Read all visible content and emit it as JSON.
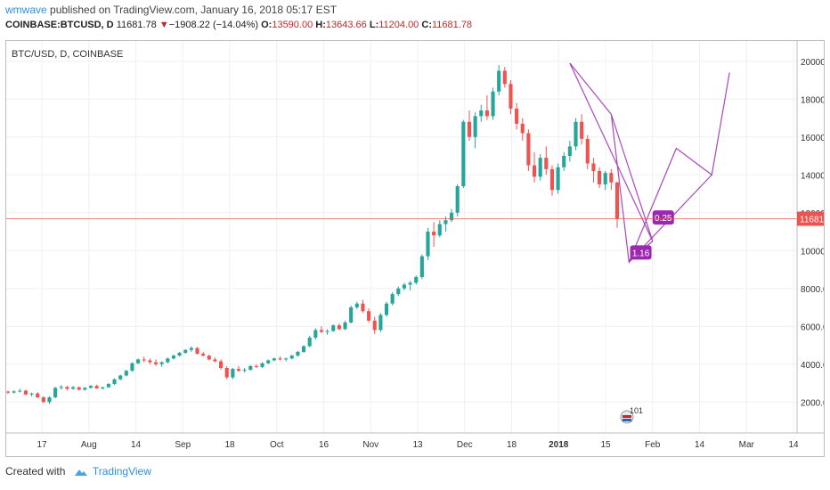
{
  "header": {
    "author": "wmwave",
    "published_text": "published on TradingView.com, January 16, 2018 05:17 EST",
    "symbol_info": "COINBASE:BTCUSD, D",
    "last_price": "11681.78",
    "change": "−1908.22 (−14.04%)",
    "o_label": "O:",
    "o_value": "13590.00",
    "h_label": "H:",
    "h_value": "13643.66",
    "l_label": "L:",
    "l_value": "11204.00",
    "c_label": "C:",
    "c_value": "11681.78"
  },
  "legend_label": "BTC/USD, D, COINBASE",
  "footer": {
    "created_with": "Created with",
    "brand": "TradingView"
  },
  "colors": {
    "up": "#26a69a",
    "down": "#ef5350",
    "pattern": "#9c27b0",
    "price_line": "#ef5350",
    "grid": "#eef0f3"
  },
  "chart_data": {
    "type": "candlestick",
    "title": "BTC/USD, D, COINBASE",
    "last_price": 11681.78,
    "y_ticks": [
      "2000.00",
      "4000.00",
      "6000.00",
      "8000.00",
      "10000.00",
      "12000.00",
      "14000.00",
      "16000.00",
      "18000.00",
      "20000.00"
    ],
    "ylim": [
      600,
      20600
    ],
    "x_ticks": [
      "17",
      "Aug",
      "14",
      "Sep",
      "18",
      "Oct",
      "16",
      "Nov",
      "13",
      "Dec",
      "18",
      "2018",
      "15",
      "Feb",
      "14",
      "Mar",
      "14"
    ],
    "bold_x_tick": "2018",
    "grid": true,
    "candles": [
      [
        2550,
        2600,
        2420,
        2500
      ],
      [
        2500,
        2620,
        2450,
        2560
      ],
      [
        2560,
        2700,
        2500,
        2600
      ],
      [
        2600,
        2650,
        2350,
        2400
      ],
      [
        2400,
        2500,
        2300,
        2450
      ],
      [
        2450,
        2520,
        2200,
        2250
      ],
      [
        2250,
        2300,
        1950,
        2000
      ],
      [
        2000,
        2300,
        1900,
        2250
      ],
      [
        2250,
        2800,
        2200,
        2750
      ],
      [
        2750,
        2900,
        2650,
        2800
      ],
      [
        2800,
        2850,
        2600,
        2700
      ],
      [
        2700,
        2850,
        2650,
        2780
      ],
      [
        2780,
        2820,
        2600,
        2650
      ],
      [
        2650,
        2800,
        2600,
        2750
      ],
      [
        2750,
        2900,
        2700,
        2850
      ],
      [
        2850,
        2920,
        2700,
        2720
      ],
      [
        2720,
        2800,
        2650,
        2780
      ],
      [
        2780,
        3000,
        2750,
        2950
      ],
      [
        2950,
        3250,
        2900,
        3200
      ],
      [
        3200,
        3450,
        3150,
        3400
      ],
      [
        3400,
        3700,
        3350,
        3650
      ],
      [
        3650,
        4100,
        3600,
        4050
      ],
      [
        4050,
        4300,
        4000,
        4250
      ],
      [
        4250,
        4400,
        4100,
        4200
      ],
      [
        4200,
        4300,
        4000,
        4100
      ],
      [
        4100,
        4250,
        3900,
        4000
      ],
      [
        4000,
        4150,
        3850,
        4100
      ],
      [
        4100,
        4350,
        4050,
        4300
      ],
      [
        4300,
        4500,
        4250,
        4450
      ],
      [
        4450,
        4650,
        4400,
        4600
      ],
      [
        4600,
        4800,
        4550,
        4750
      ],
      [
        4750,
        4950,
        4650,
        4850
      ],
      [
        4850,
        4900,
        4500,
        4550
      ],
      [
        4550,
        4650,
        4400,
        4450
      ],
      [
        4450,
        4500,
        4200,
        4250
      ],
      [
        4250,
        4350,
        4100,
        4150
      ],
      [
        4150,
        4250,
        3700,
        3800
      ],
      [
        3800,
        3900,
        3200,
        3300
      ],
      [
        3300,
        3800,
        3200,
        3750
      ],
      [
        3750,
        3900,
        3600,
        3650
      ],
      [
        3650,
        3800,
        3550,
        3700
      ],
      [
        3700,
        3950,
        3650,
        3900
      ],
      [
        3900,
        4000,
        3800,
        3850
      ],
      [
        3850,
        4100,
        3800,
        4050
      ],
      [
        4050,
        4250,
        4000,
        4200
      ],
      [
        4200,
        4350,
        4150,
        4300
      ],
      [
        4300,
        4400,
        4200,
        4250
      ],
      [
        4250,
        4350,
        4150,
        4300
      ],
      [
        4300,
        4500,
        4250,
        4450
      ],
      [
        4450,
        4700,
        4400,
        4650
      ],
      [
        4650,
        5000,
        4600,
        4950
      ],
      [
        4950,
        5500,
        4900,
        5400
      ],
      [
        5400,
        5900,
        5300,
        5800
      ],
      [
        5800,
        6000,
        5650,
        5700
      ],
      [
        5700,
        5850,
        5550,
        5750
      ],
      [
        5750,
        6100,
        5700,
        6050
      ],
      [
        6050,
        6150,
        5800,
        5850
      ],
      [
        5850,
        6300,
        5800,
        6200
      ],
      [
        6200,
        7100,
        6150,
        7000
      ],
      [
        7000,
        7300,
        6900,
        7200
      ],
      [
        7200,
        7400,
        6700,
        6800
      ],
      [
        6800,
        6950,
        6200,
        6300
      ],
      [
        6300,
        6500,
        5600,
        5800
      ],
      [
        5800,
        6700,
        5700,
        6600
      ],
      [
        6600,
        7300,
        6500,
        7200
      ],
      [
        7200,
        7800,
        7100,
        7700
      ],
      [
        7700,
        8100,
        7600,
        8000
      ],
      [
        8000,
        8300,
        7900,
        8200
      ],
      [
        8200,
        8400,
        7900,
        8300
      ],
      [
        8300,
        8700,
        8200,
        8600
      ],
      [
        8600,
        9800,
        8500,
        9700
      ],
      [
        9700,
        11200,
        9500,
        11000
      ],
      [
        11000,
        11500,
        10200,
        10800
      ],
      [
        10800,
        11600,
        10700,
        11400
      ],
      [
        11400,
        11800,
        11000,
        11600
      ],
      [
        11600,
        12200,
        11500,
        12000
      ],
      [
        12000,
        13500,
        11800,
        13400
      ],
      [
        13400,
        16900,
        13300,
        16800
      ],
      [
        16800,
        17400,
        15800,
        16000
      ],
      [
        16000,
        17300,
        15400,
        17100
      ],
      [
        17100,
        17700,
        16800,
        17400
      ],
      [
        17400,
        18200,
        16900,
        17100
      ],
      [
        17100,
        18600,
        16900,
        18400
      ],
      [
        18400,
        19800,
        18200,
        19500
      ],
      [
        19500,
        19700,
        18600,
        18800
      ],
      [
        18800,
        19000,
        17200,
        17500
      ],
      [
        17500,
        17800,
        16400,
        16700
      ],
      [
        16700,
        17000,
        15800,
        16200
      ],
      [
        16200,
        16400,
        14200,
        14500
      ],
      [
        14500,
        15200,
        13600,
        13900
      ],
      [
        13900,
        15100,
        13700,
        14900
      ],
      [
        14900,
        15500,
        14000,
        14300
      ],
      [
        14300,
        14500,
        12900,
        13200
      ],
      [
        13200,
        14600,
        13000,
        14400
      ],
      [
        14400,
        15200,
        14200,
        15000
      ],
      [
        15000,
        15800,
        14700,
        15500
      ],
      [
        15500,
        17000,
        15300,
        16800
      ],
      [
        16800,
        17200,
        15600,
        15900
      ],
      [
        15900,
        16100,
        14300,
        14600
      ],
      [
        14600,
        14900,
        13600,
        14200
      ],
      [
        14200,
        14400,
        13300,
        13500
      ],
      [
        13500,
        14200,
        13200,
        14100
      ],
      [
        14100,
        14300,
        13200,
        13600
      ],
      [
        13600,
        13643.66,
        11204,
        11681.78
      ]
    ],
    "harmonic_pattern": {
      "points": [
        [
          -122,
          19900
        ],
        [
          -106,
          10500
        ],
        [
          -93,
          17200
        ],
        [
          -75,
          9400
        ],
        [
          -61,
          15400
        ],
        [
          -49,
          14000
        ],
        [
          -44,
          19400
        ]
      ],
      "ratio_labels": [
        {
          "text": "1.16",
          "at": [
            -96,
            9900
          ]
        },
        {
          "text": "0.25",
          "at": [
            -62,
            11750
          ]
        }
      ]
    },
    "earnings_badge": "101"
  }
}
